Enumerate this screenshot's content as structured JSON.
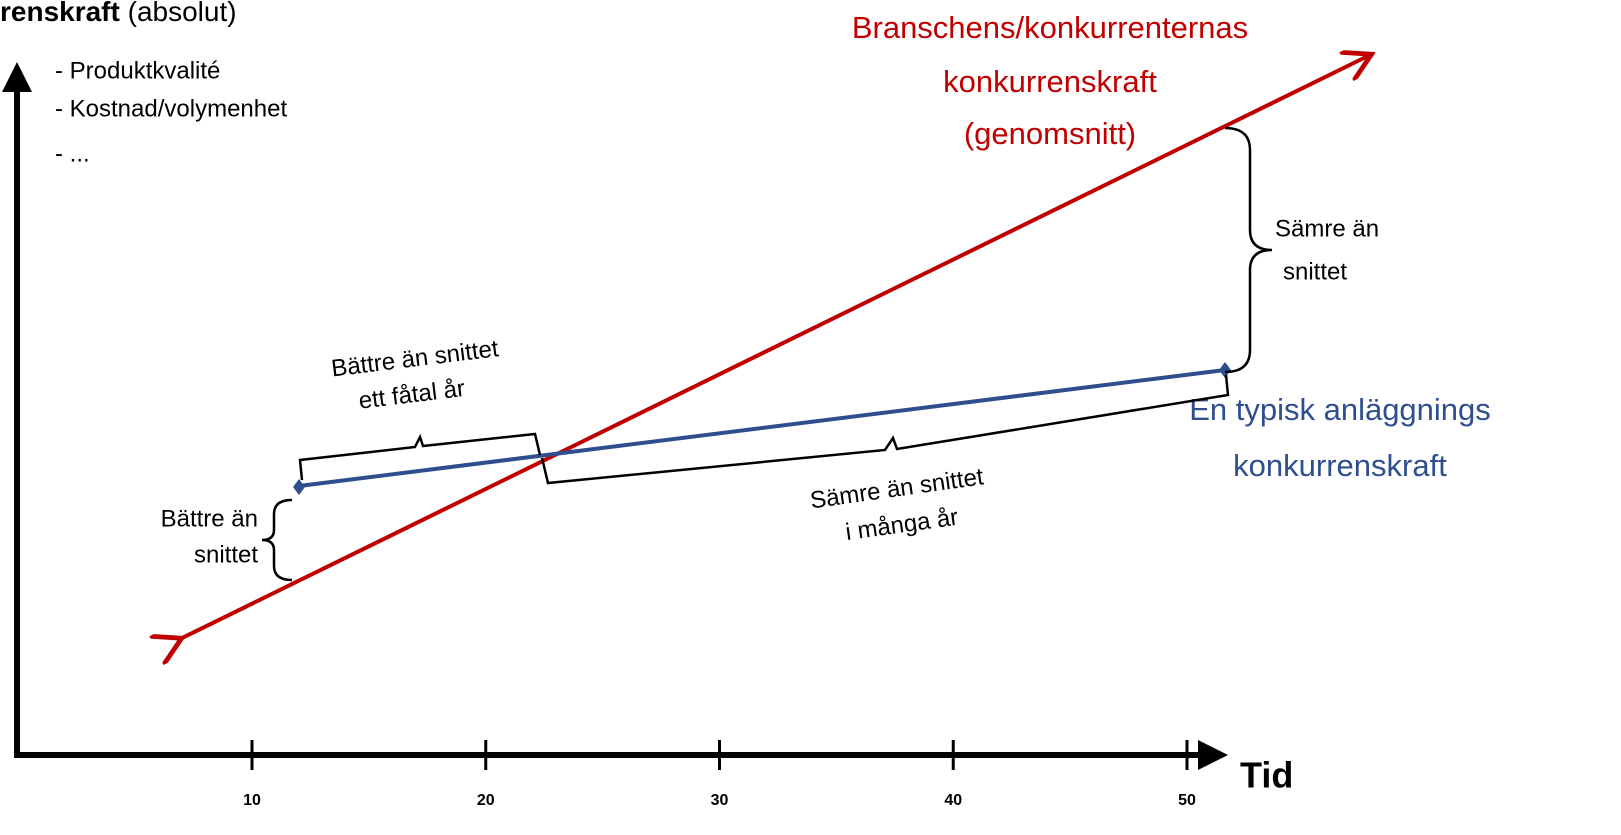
{
  "title": {
    "bold": "renskraft",
    "rest": "(absolut)"
  },
  "factors": [
    "- Produktkvalité",
    "- Kostnad/volymenhet",
    "- ..."
  ],
  "x_axis": {
    "label": "Tid",
    "ticks": [
      10,
      20,
      30,
      40,
      50
    ]
  },
  "industry_line": {
    "label": [
      "Branschens/konkurrenternas",
      "konkurrenskraft",
      "(genomsnitt)"
    ]
  },
  "plant_line": {
    "label": [
      "En typisk anläggnings",
      "konkurrenskraft"
    ]
  },
  "annotations": {
    "better_start": [
      "Bättre än",
      "snittet"
    ],
    "better_years": [
      "Bättre än snittet",
      "ett fåtal år"
    ],
    "worse_years": [
      "Sämre än snittet",
      "i många år"
    ],
    "worse_end": [
      "Sämre än",
      "snittet"
    ]
  }
}
